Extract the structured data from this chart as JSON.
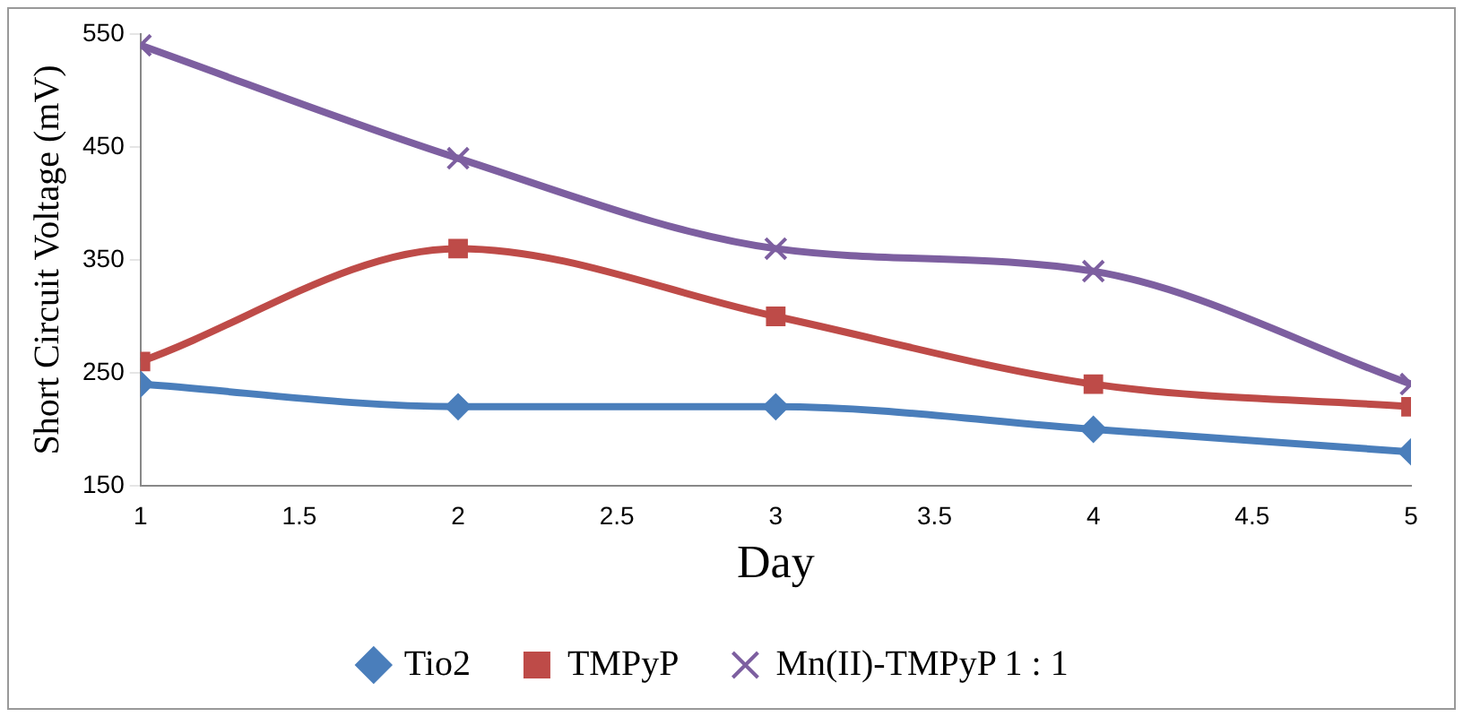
{
  "chart_data": {
    "type": "line",
    "xlabel": "Day",
    "ylabel": "Short Circuit Voltage (mV)",
    "x": [
      1,
      2,
      3,
      4,
      5
    ],
    "xlim": [
      1,
      5
    ],
    "xticks": [
      1,
      1.5,
      2,
      2.5,
      3,
      3.5,
      4,
      4.5,
      5
    ],
    "ylim": [
      150,
      550
    ],
    "yticks": [
      150,
      250,
      350,
      450,
      550
    ],
    "grid": false,
    "legend": "bottom",
    "line_style": "solid",
    "series": [
      {
        "name": "Tio2",
        "color": "#4a7ebb",
        "marker": "diamond",
        "values": [
          240,
          220,
          220,
          200,
          180
        ]
      },
      {
        "name": "TMPyP",
        "color": "#be4b48",
        "marker": "square",
        "values": [
          260,
          360,
          300,
          240,
          220
        ]
      },
      {
        "name": "Mn(II)-TMPyP 1 : 1",
        "color": "#7d5fa0",
        "marker": "cross",
        "values": [
          540,
          440,
          360,
          340,
          240
        ]
      }
    ]
  }
}
